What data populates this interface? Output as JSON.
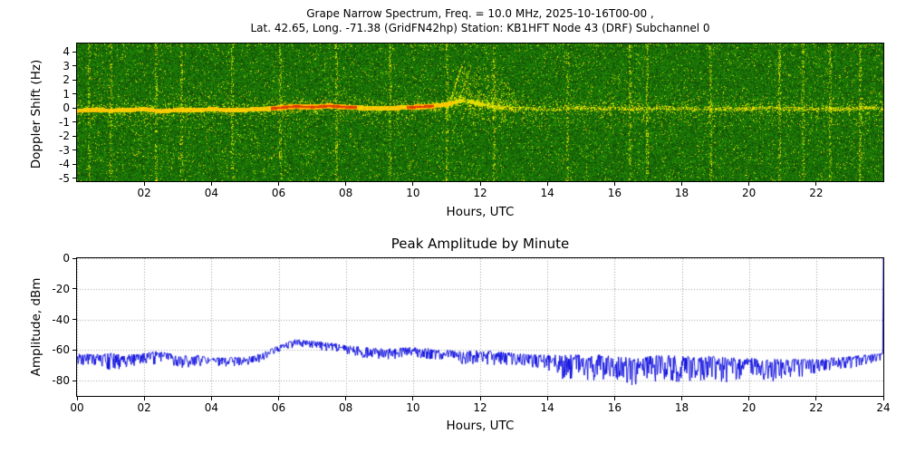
{
  "chart_data": [
    {
      "type": "heatmap",
      "name": "doppler-spectrogram",
      "title_line1": "Grape Narrow Spectrum, Freq. = 10.0 MHz, 2025-10-16T00-00 ,",
      "title_line2": "Lat.  42.65, Long. -71.38 (GridFN42hp) Station: KB1HFT Node 43 (DRF) Subchannel 0",
      "xlabel": "Hours, UTC",
      "ylabel": "Doppler Shift (Hz)",
      "xlim": [
        0,
        24
      ],
      "ylim": [
        -5.2,
        4.6
      ],
      "xtick_values": [
        2,
        4,
        6,
        8,
        10,
        12,
        14,
        16,
        18,
        20,
        22
      ],
      "xtick_labels": [
        "02",
        "04",
        "06",
        "08",
        "10",
        "12",
        "14",
        "16",
        "18",
        "20",
        "22"
      ],
      "ytick_values": [
        4,
        3,
        2,
        1,
        0,
        -1,
        -2,
        -3,
        -4,
        -5
      ],
      "ytick_labels": [
        "4",
        "3",
        "2",
        "1",
        "0",
        "-1",
        "-2",
        "-3",
        "-4",
        "-5"
      ],
      "colormap": {
        "background_green_low": "#004a00",
        "background_green_high": "#2e9b12",
        "speckle_yellow": "#e8e800",
        "trace_orange": "#ffa000",
        "trace_red": "#e03000"
      },
      "carrier_trace": {
        "x": [
          0,
          0.5,
          1,
          1.5,
          2,
          2.5,
          3,
          3.5,
          4,
          4.5,
          5,
          5.5,
          6,
          6.5,
          7,
          7.5,
          8,
          8.5,
          9,
          9.5,
          10,
          10.5,
          11,
          11.5,
          12,
          12.5,
          13,
          13.5,
          14,
          14.5,
          15,
          15.5,
          16,
          16.5,
          17,
          17.5,
          18,
          18.5,
          19,
          19.5,
          20,
          20.5,
          21,
          21.5,
          22,
          22.5,
          23,
          23.5,
          24
        ],
        "doppler_hz": [
          -0.15,
          -0.1,
          -0.15,
          -0.1,
          -0.05,
          -0.2,
          -0.1,
          -0.12,
          -0.05,
          -0.1,
          -0.08,
          -0.05,
          0.05,
          0.15,
          0.1,
          0.18,
          0.1,
          0.05,
          0,
          0.05,
          0.1,
          0.15,
          0.3,
          0.6,
          0.3,
          0.1,
          0,
          0,
          -0.05,
          0,
          0.05,
          0,
          0,
          -0.05,
          0,
          0.05,
          0,
          0,
          -0.05,
          0,
          0,
          0.05,
          0,
          0,
          -0.05,
          0,
          0,
          0.05,
          0
        ],
        "intensity": [
          0.6,
          0.6,
          0.65,
          0.6,
          0.65,
          0.6,
          0.6,
          0.6,
          0.65,
          0.6,
          0.65,
          0.7,
          0.9,
          0.92,
          0.9,
          0.92,
          0.88,
          0.75,
          0.7,
          0.72,
          0.85,
          0.85,
          0.6,
          0.5,
          0.5,
          0.45,
          0.3,
          0.25,
          0.25,
          0.25,
          0.25,
          0.25,
          0.3,
          0.35,
          0.3,
          0.3,
          0.3,
          0.3,
          0.3,
          0.3,
          0.3,
          0.3,
          0.3,
          0.3,
          0.3,
          0.3,
          0.35,
          0.35,
          0.35
        ]
      },
      "disturbance": {
        "x_start_hours": 10.9,
        "x_end_hours": 13.3,
        "doppler_max_hz": 3.2,
        "description": "Broadband Doppler scatter with upward chirps to about +3 Hz between 11 and 13 UTC"
      },
      "vertical_streaks_hours": [
        0.35,
        1.0,
        2.35,
        3.1,
        4.6,
        6.05,
        7.7,
        9.3,
        11.0,
        12.4,
        14.6,
        16.45,
        16.95,
        18.85,
        20.9,
        21.6,
        22.4,
        23.3
      ]
    },
    {
      "type": "line",
      "name": "peak-amplitude-by-minute",
      "title": "Peak Amplitude by Minute",
      "xlabel": "Hours, UTC",
      "ylabel": "Amplitude, dBm",
      "xlim": [
        0,
        24
      ],
      "ylim": [
        -90,
        0
      ],
      "xtick_values": [
        0,
        2,
        4,
        6,
        8,
        10,
        12,
        14,
        16,
        18,
        20,
        22,
        24
      ],
      "xtick_labels": [
        "00",
        "02",
        "04",
        "06",
        "08",
        "10",
        "12",
        "14",
        "16",
        "18",
        "20",
        "22",
        "24"
      ],
      "ytick_values": [
        0,
        -20,
        -40,
        -60,
        -80
      ],
      "ytick_labels": [
        "0",
        "-20",
        "-40",
        "-60",
        "-80"
      ],
      "line_color": "#0000dd",
      "grid": true,
      "grid_color": "#9a9a9a",
      "samples_per_hour": 60,
      "seed": 42,
      "envelope": {
        "x": [
          0,
          0.5,
          1,
          1.5,
          2,
          2.5,
          3,
          3.5,
          4,
          4.5,
          5,
          5.5,
          6,
          6.5,
          7,
          7.5,
          8,
          8.5,
          9,
          9.5,
          10,
          10.5,
          11,
          11.5,
          12,
          12.5,
          13,
          13.5,
          14,
          14.5,
          15,
          15.5,
          16,
          16.5,
          17,
          17.5,
          18,
          18.5,
          19,
          19.5,
          20,
          20.5,
          21,
          21.5,
          22,
          22.5,
          23,
          23.5,
          24
        ],
        "top_dbm": [
          -62,
          -63,
          -62,
          -63,
          -62,
          -60,
          -64,
          -63,
          -65,
          -65,
          -64,
          -62,
          -57,
          -53,
          -54,
          -55,
          -57,
          -58,
          -59,
          -59,
          -58,
          -59,
          -60,
          -61,
          -60,
          -61,
          -62,
          -63,
          -63,
          -63,
          -63,
          -63,
          -64,
          -65,
          -64,
          -63,
          -64,
          -64,
          -64,
          -65,
          -65,
          -66,
          -66,
          -66,
          -66,
          -65,
          -64,
          -63,
          -62
        ],
        "bottom_dbm": [
          -71,
          -72,
          -74,
          -71,
          -70,
          -69,
          -72,
          -71,
          -71,
          -71,
          -70,
          -68,
          -62,
          -58,
          -59,
          -61,
          -63,
          -65,
          -66,
          -66,
          -65,
          -66,
          -68,
          -70,
          -69,
          -70,
          -70,
          -71,
          -74,
          -80,
          -80,
          -80,
          -80,
          -83,
          -82,
          -80,
          -81,
          -81,
          -81,
          -82,
          -80,
          -81,
          -80,
          -78,
          -75,
          -73,
          -72,
          -70,
          -66
        ]
      },
      "end_spike": {
        "x": 24,
        "y_dbm": 0
      }
    }
  ]
}
